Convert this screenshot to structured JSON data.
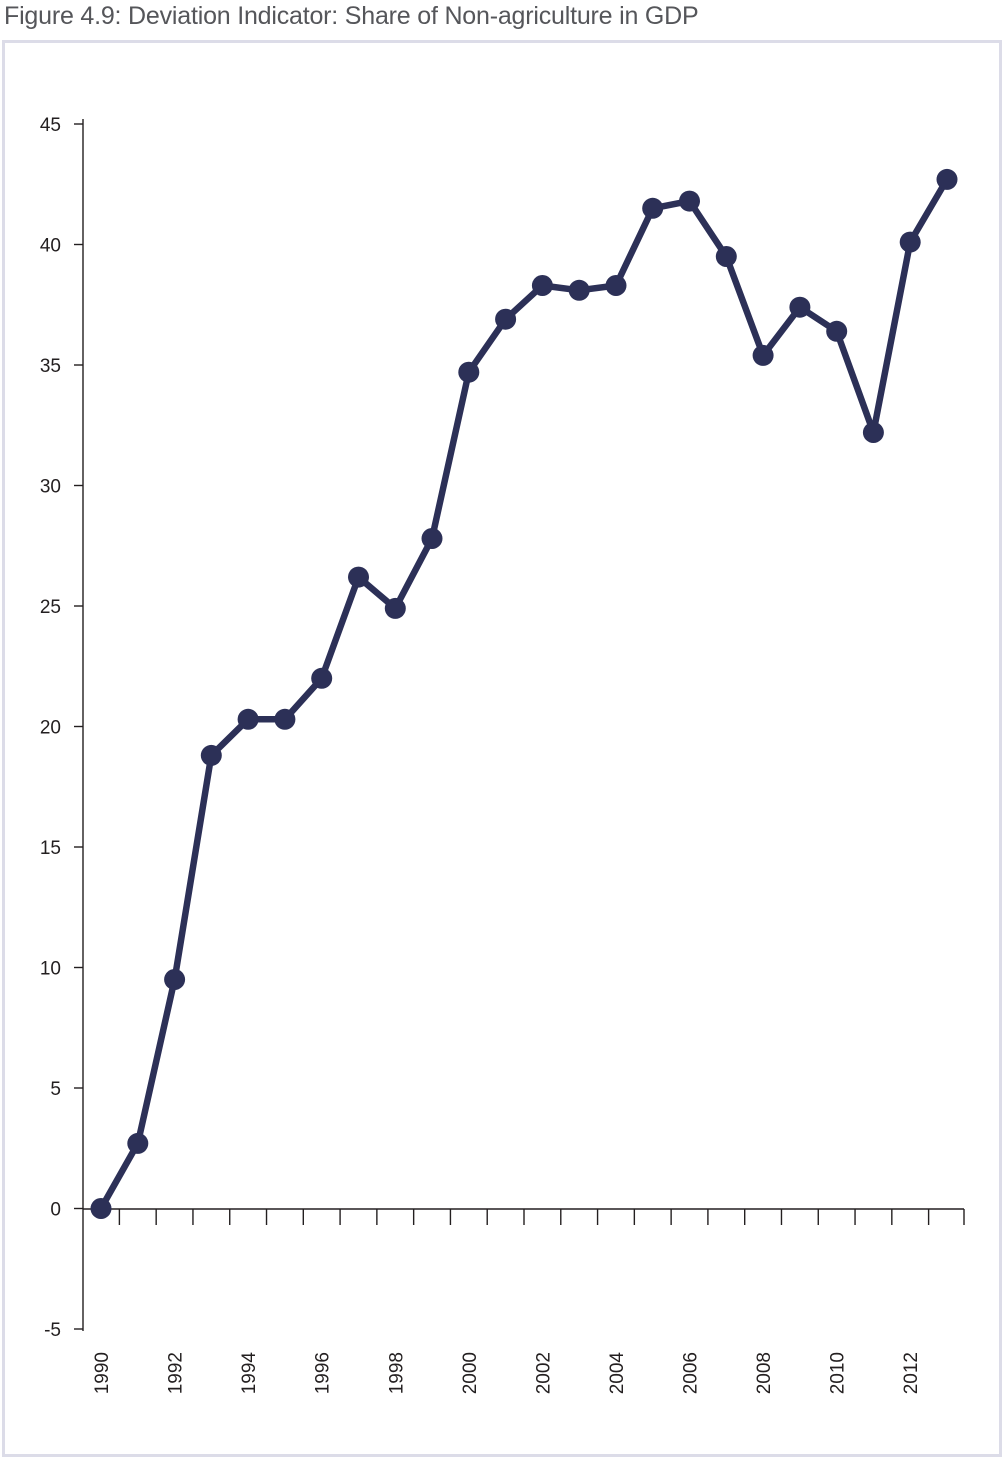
{
  "figure": {
    "title": "Figure 4.9: Deviation Indicator: Share of Non-agriculture in GDP"
  },
  "chart_data": {
    "type": "line",
    "title": "Figure 4.9: Deviation Indicator: Share of Non-agriculture in GDP",
    "xlabel": "",
    "ylabel": "",
    "x": [
      1990,
      1991,
      1992,
      1993,
      1994,
      1995,
      1996,
      1997,
      1998,
      1999,
      2000,
      2001,
      2002,
      2003,
      2004,
      2005,
      2006,
      2007,
      2008,
      2009,
      2010,
      2011,
      2012,
      2013
    ],
    "series": [
      {
        "values": [
          0.0,
          2.7,
          9.5,
          18.8,
          20.3,
          20.3,
          22.0,
          26.2,
          24.9,
          27.8,
          34.7,
          36.9,
          38.3,
          38.1,
          38.3,
          41.5,
          41.8,
          39.5,
          35.4,
          37.4,
          36.4,
          32.2,
          40.1,
          42.7
        ],
        "color": "#2c3057"
      }
    ],
    "xticks": [
      "1990",
      "1992",
      "1994",
      "1996",
      "1998",
      "2000",
      "2002",
      "2004",
      "2006",
      "2008",
      "2010",
      "2012"
    ],
    "yticks": [
      "45",
      "40",
      "35",
      "30",
      "25",
      "20",
      "15",
      "10",
      "5",
      "0",
      "-5"
    ],
    "ylim": [
      -5,
      45
    ],
    "xlim": [
      1990,
      2013
    ],
    "grid": false,
    "legend": "none",
    "axis_color": "#231f20",
    "frame_color": "#dcdce8"
  }
}
